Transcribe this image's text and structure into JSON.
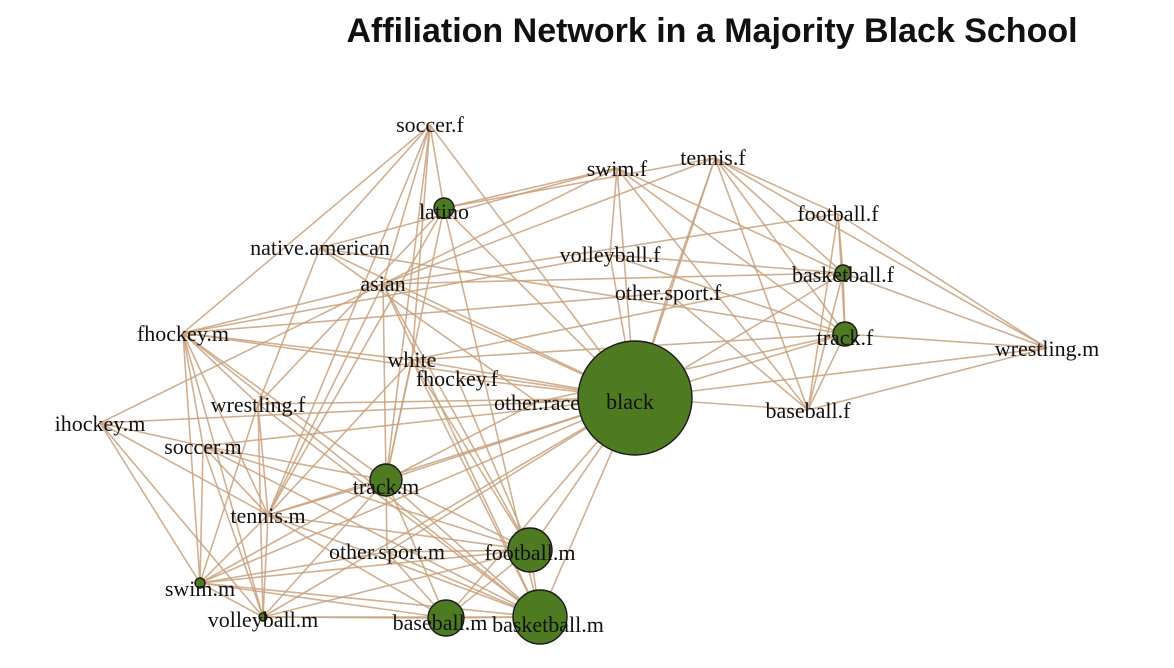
{
  "title": "Affiliation Network in a Majority Black School",
  "colors": {
    "edge": "#c9a27e",
    "node_fill": "#4e7b21",
    "node_stroke": "#1a1a1a"
  },
  "nodes": [
    {
      "id": "soccer.f",
      "label": "soccer.f"
    },
    {
      "id": "tennis.f",
      "label": "tennis.f"
    },
    {
      "id": "swim.f",
      "label": "swim.f"
    },
    {
      "id": "latino",
      "label": "latino"
    },
    {
      "id": "football.f",
      "label": "football.f"
    },
    {
      "id": "native.american",
      "label": "native.american"
    },
    {
      "id": "volleyball.f",
      "label": "volleyball.f"
    },
    {
      "id": "basketball.f",
      "label": "basketball.f"
    },
    {
      "id": "asian",
      "label": "asian"
    },
    {
      "id": "other.sport.f",
      "label": "other.sport.f"
    },
    {
      "id": "fhockey.m",
      "label": "fhockey.m"
    },
    {
      "id": "track.f",
      "label": "track.f"
    },
    {
      "id": "wrestling.m",
      "label": "wrestling.m"
    },
    {
      "id": "white",
      "label": "white"
    },
    {
      "id": "fhockey.f",
      "label": "fhockey.f"
    },
    {
      "id": "other.race",
      "label": "other.race"
    },
    {
      "id": "black",
      "label": "black"
    },
    {
      "id": "baseball.f",
      "label": "baseball.f"
    },
    {
      "id": "ihockey.m",
      "label": "ihockey.m"
    },
    {
      "id": "wrestling.f",
      "label": "wrestling.f"
    },
    {
      "id": "soccer.m",
      "label": "soccer.m"
    },
    {
      "id": "track.m",
      "label": "track.m"
    },
    {
      "id": "tennis.m",
      "label": "tennis.m"
    },
    {
      "id": "other.sport.m",
      "label": "other.sport.m"
    },
    {
      "id": "football.m",
      "label": "football.m"
    },
    {
      "id": "swim.m",
      "label": "swim.m"
    },
    {
      "id": "volleyball.m",
      "label": "volleyball.m"
    },
    {
      "id": "baseball.m",
      "label": "baseball.m"
    },
    {
      "id": "basketball.m",
      "label": "basketball.m"
    }
  ]
}
